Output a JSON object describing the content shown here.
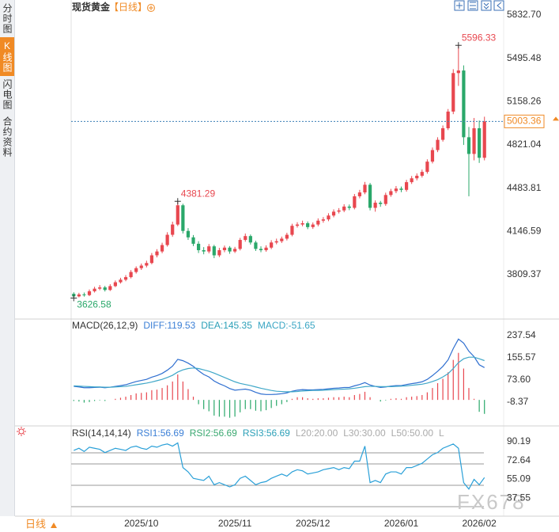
{
  "sidebar": {
    "tabs": [
      "分时图",
      "K线图",
      "闪电图",
      "合约资料"
    ],
    "active": 1
  },
  "header": {
    "title": "现货黄金",
    "period": "【日线】"
  },
  "footer": {
    "period": "日线"
  },
  "watermark": "FX678",
  "chart_data": [
    {
      "type": "candlestick",
      "categories": [
        null,
        null,
        null,
        null,
        null,
        null,
        null,
        null,
        null,
        null,
        null,
        null,
        null,
        "2025/10",
        null,
        null,
        null,
        null,
        null,
        null,
        null,
        null,
        null,
        null,
        null,
        null,
        null,
        null,
        null,
        null,
        null,
        "2025/11",
        null,
        null,
        null,
        null,
        null,
        null,
        null,
        null,
        null,
        null,
        null,
        null,
        null,
        null,
        "2025/12",
        null,
        null,
        null,
        null,
        null,
        null,
        null,
        null,
        null,
        null,
        null,
        null,
        null,
        null,
        null,
        null,
        "2026/01",
        null,
        null,
        null,
        null,
        null,
        null,
        null,
        null,
        null,
        null,
        null,
        null,
        null,
        null,
        "2026/02",
        null
      ],
      "open": [
        3660,
        3640,
        3655,
        3650,
        3680,
        3700,
        3710,
        3690,
        3720,
        3750,
        3770,
        3790,
        3830,
        3860,
        3880,
        3900,
        3960,
        3990,
        4040,
        4120,
        4200,
        4350,
        4150,
        4100,
        4050,
        4000,
        3990,
        4030,
        3960,
        4000,
        4020,
        3990,
        4010,
        4080,
        4110,
        4060,
        4010,
        4000,
        4020,
        4060,
        4070,
        4090,
        4120,
        4190,
        4200,
        4210,
        4180,
        4200,
        4230,
        4240,
        4270,
        4300,
        4310,
        4340,
        4330,
        4420,
        4450,
        4510,
        4330,
        4370,
        4360,
        4430,
        4460,
        4480,
        4470,
        4530,
        4560,
        4580,
        4610,
        4690,
        4780,
        4860,
        4950,
        5080,
        5380,
        5400,
        4880,
        4750,
        4950,
        4720
      ],
      "high": [
        3672,
        3668,
        3670,
        3694,
        3715,
        3728,
        3722,
        3735,
        3764,
        3785,
        3806,
        3845,
        3874,
        3896,
        3918,
        3978,
        4008,
        4058,
        4140,
        4222,
        4381.29,
        4362,
        4172,
        4118,
        4070,
        4024,
        4048,
        4042,
        4018,
        4036,
        4032,
        4026,
        4096,
        4130,
        4122,
        4074,
        4030,
        4038,
        4078,
        4090,
        4106,
        4136,
        4206,
        4218,
        4230,
        4224,
        4216,
        4248,
        4258,
        4288,
        4318,
        4328,
        4358,
        4356,
        4438,
        4470,
        4532,
        4524,
        4388,
        4384,
        4448,
        4478,
        4500,
        4496,
        4548,
        4578,
        4598,
        4628,
        4708,
        4800,
        4880,
        4972,
        5100,
        5410,
        5596.33,
        5440,
        4960,
        5030,
        5010,
        5040
      ],
      "low": [
        3626.58,
        3632,
        3638,
        3642,
        3670,
        3688,
        3678,
        3682,
        3712,
        3740,
        3758,
        3780,
        3818,
        3846,
        3866,
        3890,
        3944,
        3976,
        4028,
        4104,
        4188,
        4130,
        4080,
        4032,
        3978,
        3968,
        3975,
        3938,
        3946,
        3984,
        3972,
        3978,
        3998,
        4066,
        4044,
        3994,
        3984,
        3988,
        4008,
        4046,
        4056,
        4076,
        4108,
        4176,
        4186,
        4164,
        4166,
        4186,
        4214,
        4226,
        4256,
        4286,
        4296,
        4312,
        4318,
        4404,
        4436,
        4310,
        4300,
        4338,
        4346,
        4416,
        4444,
        4452,
        4456,
        4516,
        4544,
        4566,
        4596,
        4676,
        4764,
        4846,
        4936,
        5060,
        5280,
        4820,
        4420,
        4700,
        4680,
        4700
      ],
      "close": [
        3640,
        3655,
        3650,
        3680,
        3700,
        3710,
        3690,
        3720,
        3750,
        3770,
        3790,
        3830,
        3860,
        3880,
        3900,
        3960,
        3990,
        4040,
        4120,
        4200,
        4350,
        4150,
        4100,
        4050,
        4000,
        3990,
        4030,
        3960,
        4000,
        4020,
        3990,
        4010,
        4080,
        4110,
        4060,
        4010,
        4000,
        4020,
        4060,
        4070,
        4090,
        4120,
        4190,
        4200,
        4210,
        4180,
        4200,
        4230,
        4240,
        4270,
        4300,
        4310,
        4340,
        4330,
        4420,
        4450,
        4510,
        4330,
        4370,
        4360,
        4430,
        4460,
        4480,
        4470,
        4530,
        4560,
        4580,
        4610,
        4690,
        4780,
        4860,
        4950,
        5080,
        5380,
        5400,
        4880,
        4750,
        4950,
        4720,
        5003.36
      ],
      "up_color": "#e8474f",
      "down_color": "#2aa86a",
      "last_price_color": "#f08a24",
      "annotations": [
        5596.33,
        4381.29,
        3626.58
      ],
      "ylim": [
        3482,
        5900
      ],
      "yticks": [
        {
          "value": 5832.7,
          "label": "5832.70"
        },
        5495.48,
        5158.26,
        4821.04,
        4483.81,
        4146.59,
        3809.37
      ]
    },
    {
      "type": "macd",
      "header": [
        {
          "text": "MACD(26,12,9)",
          "color": "#333333"
        },
        {
          "text": "DIFF:119.53",
          "color": "#3b7fd6"
        },
        {
          "text": "DEA:145.35",
          "color": "#2ca0b8"
        },
        {
          "text": "MACD:-51.65",
          "color": "#3aa6c4"
        }
      ],
      "series": [
        {
          "color": "#2f6fd0",
          "values": [
            50,
            48,
            45,
            45,
            46,
            47,
            45,
            47,
            50,
            53,
            56,
            62,
            68,
            72,
            76,
            84,
            90,
            98,
            110,
            125,
            150,
            145,
            136,
            124,
            108,
            94,
            85,
            70,
            60,
            52,
            42,
            36,
            38,
            40,
            36,
            28,
            22,
            20,
            20,
            21,
            23,
            26,
            32,
            36,
            38,
            37,
            37,
            38,
            39,
            41,
            43,
            44,
            46,
            46,
            52,
            57,
            64,
            55,
            50,
            46,
            48,
            51,
            53,
            53,
            57,
            60,
            63,
            67,
            76,
            90,
            106,
            124,
            148,
            190,
            225,
            210,
            180,
            160,
            130,
            119.53
          ]
        },
        {
          "color": "#3fa7c8",
          "values": [
            52,
            51,
            50,
            49,
            48,
            48,
            47,
            47,
            48,
            49,
            50,
            53,
            56,
            59,
            62,
            66,
            71,
            76,
            83,
            91,
            103,
            111,
            116,
            118,
            116,
            111,
            106,
            99,
            91,
            83,
            75,
            67,
            61,
            57,
            53,
            48,
            43,
            39,
            35,
            32,
            31,
            30,
            30,
            31,
            33,
            34,
            35,
            35,
            36,
            37,
            38,
            39,
            40,
            41,
            43,
            46,
            49,
            50,
            50,
            49,
            49,
            49,
            50,
            51,
            52,
            54,
            56,
            58,
            62,
            68,
            75,
            85,
            97,
            116,
            138,
            152,
            158,
            158,
            152,
            145.35
          ]
        }
      ],
      "histogram": [
        -4,
        -6,
        -10,
        -8,
        -4,
        -2,
        -4,
        0,
        4,
        8,
        12,
        18,
        24,
        26,
        28,
        36,
        38,
        44,
        54,
        68,
        94,
        68,
        40,
        12,
        -16,
        -34,
        -42,
        -58,
        -62,
        -62,
        -66,
        -62,
        -46,
        -34,
        -34,
        -40,
        -42,
        -38,
        -30,
        -22,
        -16,
        -8,
        4,
        10,
        10,
        6,
        4,
        6,
        6,
        8,
        10,
        10,
        12,
        10,
        18,
        22,
        30,
        10,
        0,
        -6,
        -2,
        4,
        6,
        4,
        10,
        12,
        14,
        18,
        28,
        44,
        62,
        78,
        102,
        148,
        174,
        116,
        44,
        4,
        -44,
        -51.65
      ],
      "up_color": "#e8474f",
      "down_color": "#2aa86a",
      "ylim": [
        -96.2,
        293.2
      ],
      "yticks": [
        237.54,
        155.57,
        {
          "value": 73.6,
          "label": "73.60"
        },
        -8.37
      ]
    },
    {
      "type": "rsi",
      "header": [
        {
          "text": "RSI(14,14,14)",
          "color": "#333333"
        },
        {
          "text": "RSI1:56.69",
          "color": "#3b7fd6"
        },
        {
          "text": "RSI2:56.69",
          "color": "#3aa870"
        },
        {
          "text": "RSI3:56.69",
          "color": "#2ca0b8"
        },
        {
          "text": "L20:20.00",
          "color": "#aaaaaa"
        },
        {
          "text": "L30:30.00",
          "color": "#aaaaaa"
        },
        {
          "text": "L50:50.00",
          "color": "#aaaaaa"
        },
        {
          "text": "L",
          "color": "#aaaaaa"
        }
      ],
      "series": [
        {
          "color": "#2aa0d8",
          "values": [
            82,
            84,
            81,
            85,
            84,
            83,
            80,
            82,
            84,
            83,
            82,
            85,
            86,
            84,
            83,
            86,
            85,
            87,
            88,
            86,
            89,
            66,
            62,
            56,
            55,
            54,
            58,
            50,
            52,
            50,
            48,
            50,
            56,
            58,
            54,
            50,
            52,
            53,
            56,
            58,
            60,
            58,
            62,
            64,
            63,
            60,
            61,
            62,
            64,
            65,
            66,
            64,
            66,
            65,
            72,
            72,
            86,
            52,
            54,
            52,
            60,
            62,
            62,
            60,
            66,
            66,
            68,
            70,
            74,
            78,
            80,
            84,
            86,
            88,
            84,
            52,
            46,
            55,
            50,
            56.69
          ]
        }
      ],
      "ylim": [
        20.73,
        103.35
      ],
      "yticks": [
        90.19,
        72.64,
        55.09,
        37.55
      ]
    }
  ]
}
